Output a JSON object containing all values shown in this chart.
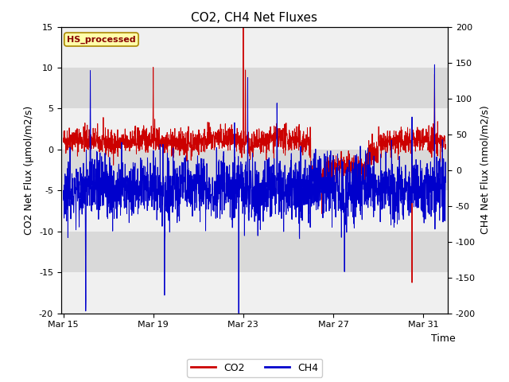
{
  "title": "CO2, CH4 Net Fluxes",
  "xlabel": "Time",
  "ylabel_left": "CO2 Net Flux (μmol/m2/s)",
  "ylabel_right": "CH4 Net Flux (nmol/m2/s)",
  "ylim_left": [
    -20,
    15
  ],
  "ylim_right": [
    -200,
    200
  ],
  "yticks_left": [
    -20,
    -15,
    -10,
    -5,
    0,
    5,
    10,
    15
  ],
  "yticks_right": [
    -200,
    -150,
    -100,
    -50,
    0,
    50,
    100,
    150,
    200
  ],
  "xtick_labels": [
    "Mar 15",
    "Mar 19",
    "Mar 23",
    "Mar 27",
    "Mar 31"
  ],
  "legend_label": "HS_processed",
  "co2_label": "CO2",
  "ch4_label": "CH4",
  "co2_color": "#cc0000",
  "ch4_color": "#0000cc",
  "plot_bg": "#d9d9d9",
  "white_band_color": "#f0f0f0",
  "legend_box_facecolor": "#ffffaa",
  "legend_box_edgecolor": "#aa8800",
  "legend_text_color": "#880000",
  "title_fontsize": 11,
  "label_fontsize": 9,
  "tick_fontsize": 8,
  "n_points": 2000,
  "seed": 42
}
